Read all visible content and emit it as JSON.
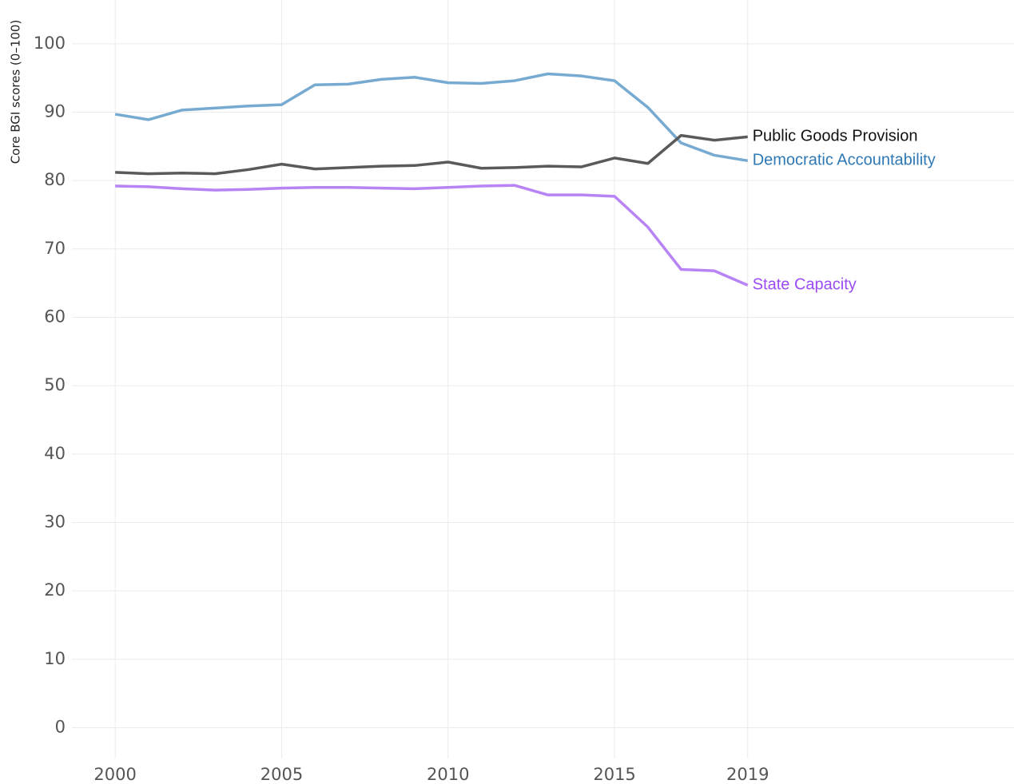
{
  "chart_data": {
    "type": "line",
    "y_label": "Core BGI scores (0–100)",
    "x": [
      2000,
      2001,
      2002,
      2003,
      2004,
      2005,
      2006,
      2007,
      2008,
      2009,
      2010,
      2011,
      2012,
      2013,
      2014,
      2015,
      2016,
      2017,
      2018,
      2019
    ],
    "series": [
      {
        "name": "Democratic Accountability",
        "color": "#76aad1",
        "label_color": "#2e78b5",
        "values": [
          89.7,
          88.9,
          90.3,
          90.6,
          90.9,
          91.1,
          94.0,
          94.1,
          94.8,
          95.1,
          94.3,
          94.2,
          94.6,
          95.6,
          95.3,
          94.6,
          90.7,
          85.5,
          83.7,
          82.9
        ]
      },
      {
        "name": "Public Goods Provision",
        "color": "#5a5a5a",
        "label_color": "#111111",
        "values": [
          81.2,
          81.0,
          81.1,
          81.0,
          81.6,
          82.4,
          81.7,
          81.9,
          82.1,
          82.2,
          82.7,
          81.8,
          81.9,
          82.1,
          82.0,
          83.3,
          82.5,
          86.6,
          85.9,
          86.4
        ]
      },
      {
        "name": "State Capacity",
        "color": "#b884f5",
        "label_color": "#9a4cf5",
        "values": [
          79.2,
          79.1,
          78.8,
          78.6,
          78.7,
          78.9,
          79.0,
          79.0,
          78.9,
          78.8,
          79.0,
          79.2,
          79.3,
          77.9,
          77.9,
          77.7,
          73.2,
          67.0,
          66.8,
          64.7
        ]
      }
    ],
    "xlim": [
      1998.7,
      2027
    ],
    "xticks": [
      2000,
      2005,
      2010,
      2015,
      2019
    ],
    "ylim": [
      -4.5,
      106.4
    ],
    "yticks": [
      0,
      10,
      20,
      30,
      40,
      50,
      60,
      70,
      80,
      90,
      100
    ],
    "grid": true
  }
}
